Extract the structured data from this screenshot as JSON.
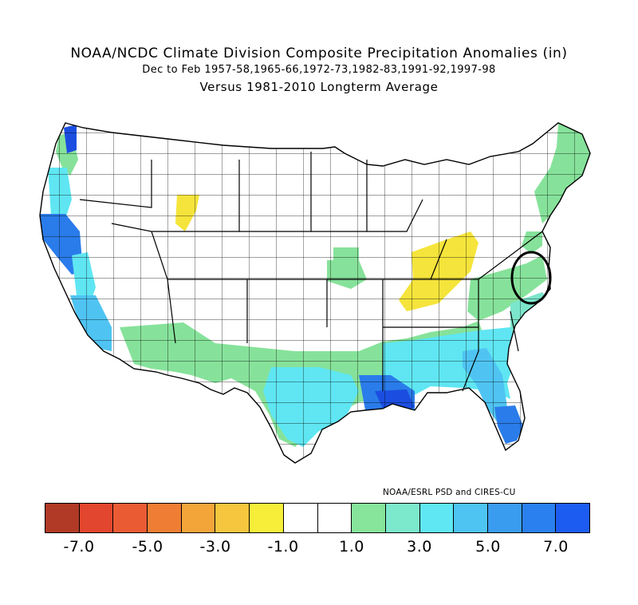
{
  "title": {
    "line1": "NOAA/NCDC Climate Division Composite Precipitation Anomalies (in)",
    "line2": "Dec to Feb  1957-58,1965-66,1972-73,1982-83,1991-92,1997-98",
    "line3": "Versus 1981-2010 Longterm Average"
  },
  "credit": "NOAA/ESRL PSD and CIRES-CU",
  "colorbar": {
    "colors": [
      "#b13a26",
      "#e2462e",
      "#ea5b34",
      "#ef7e34",
      "#f4a53a",
      "#f6c63e",
      "#f7ee3a",
      "#ffffff",
      "#ffffff",
      "#86e59a",
      "#7ce8cc",
      "#5fe8f4",
      "#4ec4f2",
      "#3a9cef",
      "#2a80ee",
      "#1d5cf0"
    ],
    "tick_labels": [
      "-7.0",
      "-5.0",
      "-3.0",
      "-1.0",
      "1.0",
      "3.0",
      "5.0",
      "7.0"
    ]
  },
  "legend_colors": {
    "yellow": "#f5e43b",
    "green": "#86e29a",
    "teal": "#7ce6cc",
    "cyan": "#5fe6f2",
    "lightblue": "#4fc4f2",
    "blue": "#2a7cea",
    "darkblue": "#1b4ee0",
    "none": "#ffffff"
  },
  "map": {
    "annotation": "circle around Chesapeake Bay / Delmarva region"
  }
}
